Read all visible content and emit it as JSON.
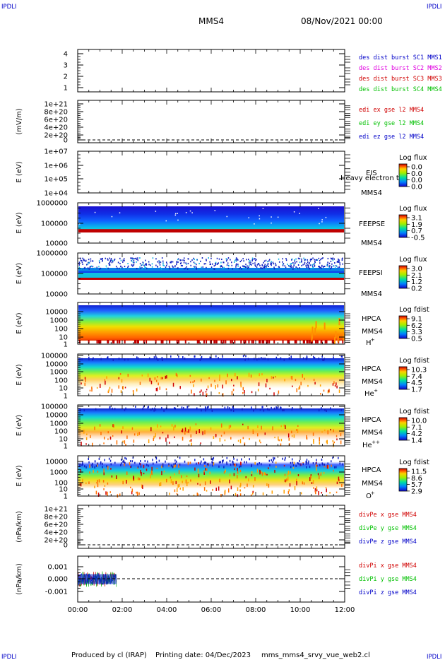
{
  "corner_label": "IPDLI",
  "header": {
    "spacecraft": "MMS4",
    "datetime": "08/Nov/2021 00:00"
  },
  "footer": {
    "produced_by": "Produced by cl (IRAP)",
    "printing_date": "Printing date: 04/Dec/2023",
    "filename": "mms_mms4_srvy_vue_web2.cl"
  },
  "x_ticks": [
    "00:00",
    "02:00",
    "04:00",
    "06:00",
    "08:00",
    "10:00",
    "12:00"
  ],
  "chart_data": [
    {
      "type": "line",
      "id": "sc_burst",
      "ylabel": "",
      "yticks": [
        "4",
        "3",
        "2",
        "1"
      ],
      "legend": [
        {
          "text": "des dist burst SC1 MMS1",
          "color": "#0000c8"
        },
        {
          "text": "des dist burst SC2 MMS2",
          "color": "#e000e0"
        },
        {
          "text": "des dist burst SC3 MMS3",
          "color": "#d00000"
        },
        {
          "text": "des dist burst SC4 MMS4",
          "color": "#00c000"
        }
      ]
    },
    {
      "type": "line",
      "id": "edi",
      "ylabel": "(mV/m)",
      "yticks": [
        "1e+21",
        "8e+20",
        "6e+20",
        "4e+20",
        "2e+20",
        "0"
      ],
      "legend": [
        {
          "text": "edi ex gse l2 MMS4",
          "color": "#d00000"
        },
        {
          "text": "edi ey gse l2 MMS4",
          "color": "#00c000"
        },
        {
          "text": "edi ez gse l2 MMS4",
          "color": "#0000c8"
        }
      ]
    },
    {
      "type": "heatmap",
      "id": "eis",
      "ylabel": "E (eV)",
      "yticks": [
        "1e+07",
        "1e+06",
        "1e+05",
        "1e+04"
      ],
      "labels": [
        "EIS",
        "Heavy electron to",
        "MMS4"
      ],
      "cbar_title": "Log flux",
      "cbar_ticks": [
        "0.0",
        "0.0",
        "0.0",
        "0.0"
      ]
    },
    {
      "type": "heatmap",
      "id": "feepse",
      "ylabel": "E (eV)",
      "yticks": [
        "1000000",
        "100000",
        "10000"
      ],
      "labels": [
        "FEEPSE",
        "MMS4"
      ],
      "cbar_title": "Log flux",
      "cbar_ticks": [
        "3.1",
        "1.9",
        "0.7",
        "-0.5"
      ]
    },
    {
      "type": "heatmap",
      "id": "feepsi",
      "ylabel": "E (eV)",
      "yticks": [
        "1000000",
        "100000",
        "10000"
      ],
      "labels": [
        "FEEPSI",
        "MMS4"
      ],
      "cbar_title": "Log flux",
      "cbar_ticks": [
        "3.0",
        "2.1",
        "1.2",
        "0.2"
      ]
    },
    {
      "type": "heatmap",
      "id": "hpca_h",
      "ylabel": "E (eV)",
      "yticks": [
        "10000",
        "1000",
        "100",
        "10",
        "1"
      ],
      "labels": [
        "HPCA",
        "MMS4"
      ],
      "species": "H",
      "charge": "+",
      "cbar_title": "Log fdist",
      "cbar_ticks": [
        "9.1",
        "6.2",
        "3.3",
        "0.5"
      ]
    },
    {
      "type": "heatmap",
      "id": "hpca_he",
      "ylabel": "E (eV)",
      "yticks": [
        "100000",
        "10000",
        "1000",
        "100",
        "10",
        "1"
      ],
      "labels": [
        "HPCA",
        "MMS4"
      ],
      "species": "He",
      "charge": "+",
      "cbar_title": "Log fdist",
      "cbar_ticks": [
        "10.3",
        "7.4",
        "4.5",
        "1.7"
      ]
    },
    {
      "type": "heatmap",
      "id": "hpca_hepp",
      "ylabel": "E (eV)",
      "yticks": [
        "100000",
        "10000",
        "1000",
        "100",
        "10",
        "1"
      ],
      "labels": [
        "HPCA",
        "MMS4"
      ],
      "species": "He",
      "charge": "++",
      "cbar_title": "Log fdist",
      "cbar_ticks": [
        "10.0",
        "7.1",
        "4.2",
        "1.4"
      ]
    },
    {
      "type": "heatmap",
      "id": "hpca_o",
      "ylabel": "E (eV)",
      "yticks": [
        "10000",
        "1000",
        "100",
        "10",
        "1"
      ],
      "labels": [
        "HPCA",
        "MMS4"
      ],
      "species": "O",
      "charge": "+",
      "cbar_title": "Log fdist",
      "cbar_ticks": [
        "11.5",
        "8.6",
        "5.7",
        "2.9"
      ]
    },
    {
      "type": "line",
      "id": "divpe",
      "ylabel": "(nPa/km)",
      "yticks": [
        "1e+21",
        "8e+20",
        "6e+20",
        "4e+20",
        "2e+20",
        "0"
      ],
      "legend": [
        {
          "text": "divPe x gse MMS4",
          "color": "#d00000"
        },
        {
          "text": "divPe y gse MMS4",
          "color": "#00c000"
        },
        {
          "text": "divPe z gse MMS4",
          "color": "#0000c8"
        }
      ]
    },
    {
      "type": "line",
      "id": "divpi",
      "ylabel": "(nPa/km)",
      "yticks": [
        "0.001",
        "0.000",
        "-0.001"
      ],
      "legend": [
        {
          "text": "divPi x gse MMS4",
          "color": "#d00000"
        },
        {
          "text": "divPi y gse MMS4",
          "color": "#00c000"
        },
        {
          "text": "divPi z gse MMS4",
          "color": "#0000c8"
        }
      ],
      "data_extent_hours": [
        0,
        1.75
      ],
      "ylim": [
        -0.0015,
        0.0015
      ]
    }
  ]
}
